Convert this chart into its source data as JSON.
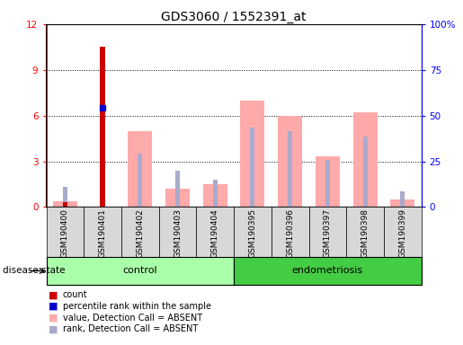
{
  "title": "GDS3060 / 1552391_at",
  "samples": [
    "GSM190400",
    "GSM190401",
    "GSM190402",
    "GSM190403",
    "GSM190404",
    "GSM190395",
    "GSM190396",
    "GSM190397",
    "GSM190398",
    "GSM190399"
  ],
  "groups": [
    "control",
    "control",
    "control",
    "control",
    "control",
    "endometriosis",
    "endometriosis",
    "endometriosis",
    "endometriosis",
    "endometriosis"
  ],
  "count_values": [
    0.3,
    10.5,
    0.0,
    0.0,
    0.0,
    0.0,
    0.0,
    0.0,
    0.0,
    0.0
  ],
  "percentile_rank_values": [
    0.0,
    6.5,
    0.0,
    0.0,
    0.0,
    0.0,
    0.0,
    0.0,
    0.0,
    0.0
  ],
  "absent_value_bars": [
    0.35,
    0.0,
    5.0,
    1.2,
    1.5,
    7.0,
    6.0,
    3.3,
    6.2,
    0.5
  ],
  "absent_rank_bars": [
    1.3,
    0.0,
    3.5,
    2.4,
    1.8,
    5.2,
    5.0,
    3.1,
    4.6,
    1.0
  ],
  "ylim_left": [
    0,
    12
  ],
  "ylim_right": [
    0,
    100
  ],
  "yticks_left": [
    0,
    3,
    6,
    9,
    12
  ],
  "ytick_labels_left": [
    "0",
    "3",
    "6",
    "9",
    "12"
  ],
  "yticks_right": [
    0,
    25,
    50,
    75,
    100
  ],
  "ytick_labels_right": [
    "0",
    "25",
    "50",
    "75",
    "100%"
  ],
  "color_count": "#cc0000",
  "color_percentile": "#0000cc",
  "color_absent_value": "#ffaaaa",
  "color_absent_rank": "#aaaacc",
  "color_control_bg": "#aaffaa",
  "color_endometriosis_bg": "#44cc44",
  "color_sample_bg": "#d8d8d8",
  "n_control": 5,
  "n_endometriosis": 5
}
